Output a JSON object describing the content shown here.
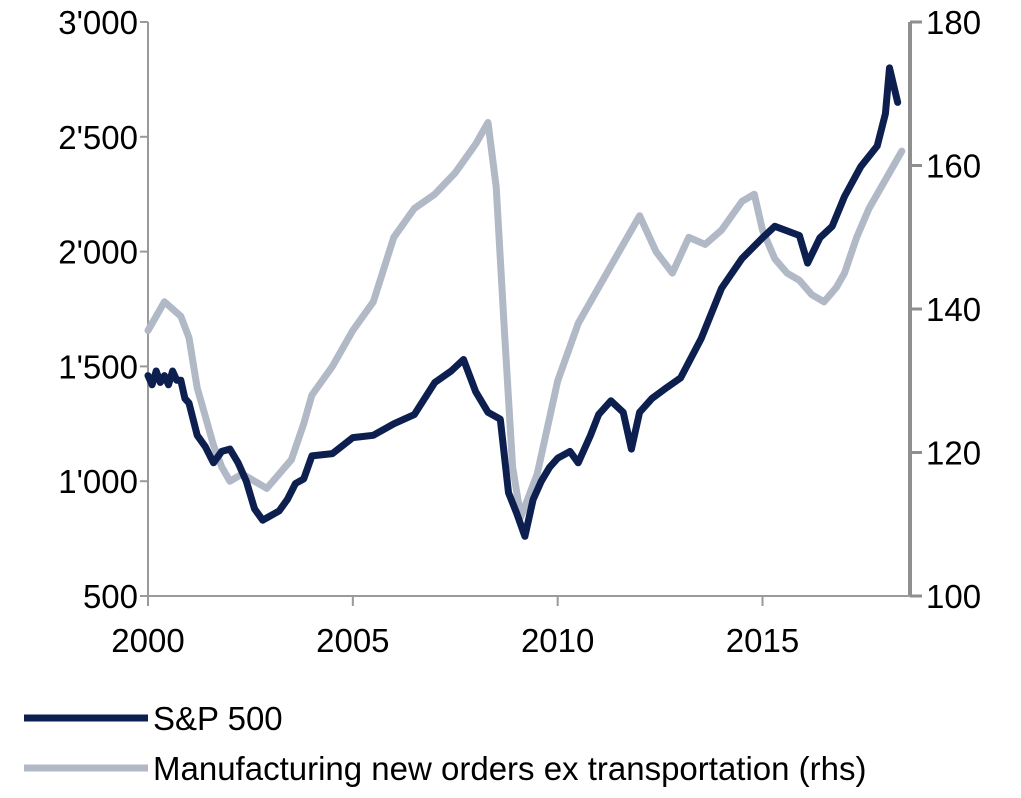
{
  "chart_data": {
    "type": "line",
    "title": "",
    "xlabel": "",
    "ylabel": "",
    "x_ticks": [
      "2000",
      "2005",
      "2010",
      "2015"
    ],
    "y_left": {
      "ticks": [
        "500",
        "1'000",
        "1'500",
        "2'000",
        "2'500",
        "3'000"
      ],
      "ylim": [
        500,
        3000
      ]
    },
    "y_right": {
      "ticks": [
        "100",
        "120",
        "140",
        "160",
        "180"
      ],
      "ylim": [
        100,
        180
      ]
    },
    "xlim": [
      2000,
      2018.6
    ],
    "grid": false,
    "legend_position": "bottom",
    "series": [
      {
        "name": "S&P 500",
        "axis": "left",
        "color": "#0d1f4f",
        "x": [
          2000.0,
          2000.1,
          2000.2,
          2000.3,
          2000.4,
          2000.5,
          2000.6,
          2000.7,
          2000.8,
          2000.9,
          2001.0,
          2001.2,
          2001.4,
          2001.6,
          2001.8,
          2002.0,
          2002.2,
          2002.4,
          2002.6,
          2002.8,
          2003.0,
          2003.2,
          2003.4,
          2003.6,
          2003.8,
          2004.0,
          2004.5,
          2005.0,
          2005.5,
          2006.0,
          2006.5,
          2007.0,
          2007.4,
          2007.7,
          2008.0,
          2008.3,
          2008.6,
          2008.8,
          2009.0,
          2009.2,
          2009.4,
          2009.6,
          2009.8,
          2010.0,
          2010.3,
          2010.5,
          2010.8,
          2011.0,
          2011.3,
          2011.6,
          2011.8,
          2012.0,
          2012.3,
          2012.6,
          2013.0,
          2013.5,
          2014.0,
          2014.5,
          2015.0,
          2015.3,
          2015.6,
          2015.9,
          2016.1,
          2016.4,
          2016.7,
          2017.0,
          2017.4,
          2017.8,
          2018.0,
          2018.1,
          2018.3
        ],
        "values": [
          1460,
          1420,
          1480,
          1430,
          1460,
          1420,
          1480,
          1440,
          1440,
          1360,
          1340,
          1200,
          1150,
          1080,
          1130,
          1140,
          1080,
          1000,
          880,
          830,
          850,
          870,
          920,
          990,
          1010,
          1110,
          1120,
          1190,
          1200,
          1250,
          1290,
          1430,
          1480,
          1530,
          1390,
          1300,
          1270,
          950,
          860,
          760,
          920,
          1000,
          1060,
          1100,
          1130,
          1080,
          1200,
          1290,
          1350,
          1300,
          1140,
          1300,
          1360,
          1400,
          1450,
          1620,
          1840,
          1970,
          2060,
          2110,
          2090,
          2070,
          1950,
          2060,
          2110,
          2240,
          2370,
          2460,
          2600,
          2800,
          2650
        ]
      },
      {
        "name": "Manufacturing new orders ex transportation (rhs)",
        "axis": "right",
        "color": "#b1b8c6",
        "x": [
          2000.0,
          2000.2,
          2000.4,
          2000.6,
          2000.8,
          2001.0,
          2001.2,
          2001.4,
          2001.6,
          2001.8,
          2002.0,
          2002.3,
          2002.6,
          2002.9,
          2003.2,
          2003.5,
          2003.8,
          2004.0,
          2004.5,
          2005.0,
          2005.5,
          2006.0,
          2006.5,
          2007.0,
          2007.5,
          2008.0,
          2008.3,
          2008.5,
          2008.7,
          2008.9,
          2009.1,
          2009.3,
          2009.5,
          2010.0,
          2010.5,
          2011.0,
          2011.5,
          2012.0,
          2012.4,
          2012.8,
          2013.2,
          2013.6,
          2014.0,
          2014.5,
          2014.8,
          2015.0,
          2015.3,
          2015.6,
          2015.9,
          2016.2,
          2016.5,
          2016.8,
          2017.0,
          2017.3,
          2017.6,
          2017.9,
          2018.2,
          2018.4
        ],
        "values": [
          137,
          139,
          141,
          140,
          139,
          136,
          129,
          125,
          121,
          118,
          116,
          117,
          116,
          115,
          117,
          119,
          124,
          128,
          132,
          137,
          141,
          150,
          154,
          156,
          159,
          163,
          166,
          157,
          137,
          118,
          111,
          114,
          117,
          130,
          138,
          143,
          148,
          153,
          148,
          145,
          150,
          149,
          151,
          155,
          156,
          151,
          147,
          145,
          144,
          142,
          141,
          143,
          145,
          150,
          154,
          157,
          160,
          162
        ]
      }
    ]
  }
}
